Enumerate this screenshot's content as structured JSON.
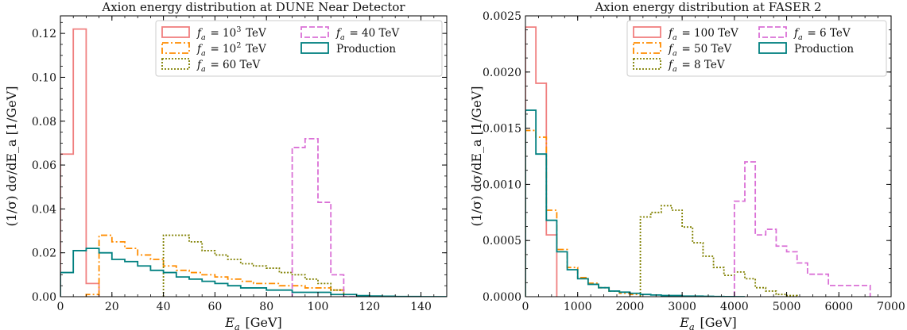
{
  "chart_data": [
    {
      "type": "histogram-step",
      "title": "Axion energy distribution at DUNE Near Detector",
      "xlabel": "E_a [GeV]",
      "ylabel": "(1/σ) dσ/dE_a [1/GeV]",
      "xlim": [
        0,
        150
      ],
      "ylim": [
        0,
        0.128
      ],
      "xticks": [
        0,
        20,
        40,
        60,
        80,
        100,
        120,
        140
      ],
      "xtick_labels": [
        "0",
        "20",
        "40",
        "60",
        "80",
        "100",
        "120",
        "140"
      ],
      "yticks": [
        0,
        0.02,
        0.04,
        0.06,
        0.08,
        0.1,
        0.12
      ],
      "ytick_labels": [
        "0.00",
        "0.02",
        "0.04",
        "0.06",
        "0.08",
        "0.10",
        "0.12"
      ],
      "legend_position": "top-right",
      "legend_columns": 2,
      "series": [
        {
          "name": "f_a = 10^3 TeV",
          "color": "#f08080",
          "dash": "solid",
          "x": [
            0,
            5,
            10,
            15
          ],
          "values": [
            0.065,
            0.122,
            0.006
          ]
        },
        {
          "name": "f_a = 10^2 TeV",
          "color": "#ff8c00",
          "dash": "dashdot",
          "x": [
            10,
            15,
            20,
            25,
            30,
            35,
            40,
            45,
            50,
            55,
            60,
            65,
            70,
            75,
            80,
            85,
            90,
            95,
            100,
            105,
            110
          ],
          "values": [
            0.001,
            0.028,
            0.025,
            0.022,
            0.019,
            0.017,
            0.014,
            0.012,
            0.011,
            0.01,
            0.009,
            0.008,
            0.007,
            0.006,
            0.006,
            0.005,
            0.005,
            0.004,
            0.004,
            0.003
          ]
        },
        {
          "name": "f_a = 60 TeV",
          "color": "#808000",
          "dash": "dotted",
          "x": [
            40,
            45,
            50,
            55,
            60,
            65,
            70,
            75,
            80,
            85,
            90,
            95,
            100,
            105,
            110
          ],
          "values": [
            0.028,
            0.028,
            0.025,
            0.021,
            0.019,
            0.017,
            0.015,
            0.014,
            0.013,
            0.011,
            0.01,
            0.008,
            0.006,
            0.003
          ]
        },
        {
          "name": "f_a = 40 TeV",
          "color": "#da70d6",
          "dash": "dashed",
          "x": [
            90,
            95,
            100,
            105,
            110,
            115
          ],
          "values": [
            0.068,
            0.072,
            0.043,
            0.01,
            0.0
          ]
        },
        {
          "name": "Production",
          "color": "#008080",
          "dash": "solid",
          "x": [
            0,
            5,
            10,
            15,
            20,
            25,
            30,
            35,
            40,
            45,
            50,
            55,
            60,
            65,
            70,
            75,
            80,
            85,
            90,
            95,
            100,
            105,
            110,
            115,
            120,
            125,
            130,
            135,
            140,
            145,
            150
          ],
          "values": [
            0.011,
            0.021,
            0.022,
            0.02,
            0.017,
            0.016,
            0.014,
            0.012,
            0.011,
            0.009,
            0.008,
            0.007,
            0.006,
            0.005,
            0.004,
            0.004,
            0.003,
            0.003,
            0.002,
            0.002,
            0.002,
            0.001,
            0.001,
            0.0005,
            0.0003,
            0.0002,
            0.0001,
            0.0001,
            0.0,
            0.0
          ]
        }
      ]
    },
    {
      "type": "histogram-step",
      "title": "Axion energy distribution at FASER 2",
      "xlabel": "E_a [GeV]",
      "ylabel": "(1/σ) dσ/dE_a [1/GeV]",
      "xlim": [
        0,
        7000
      ],
      "ylim": [
        0,
        0.0025
      ],
      "xticks": [
        0,
        1000,
        2000,
        3000,
        4000,
        5000,
        6000,
        7000
      ],
      "xtick_labels": [
        "0",
        "1000",
        "2000",
        "3000",
        "4000",
        "5000",
        "6000",
        "7000"
      ],
      "yticks": [
        0,
        0.0005,
        0.001,
        0.0015,
        0.002,
        0.0025
      ],
      "ytick_labels": [
        "0.0000",
        "0.0005",
        "0.0010",
        "0.0015",
        "0.0020",
        "0.0025"
      ],
      "legend_position": "top-right",
      "legend_columns": 2,
      "series": [
        {
          "name": "f_a = 100 TeV",
          "color": "#f08080",
          "dash": "solid",
          "x": [
            0,
            200,
            400,
            600
          ],
          "values": [
            0.0024,
            0.0019,
            0.00055
          ]
        },
        {
          "name": "f_a = 50 TeV",
          "color": "#ff8c00",
          "dash": "dashdot",
          "x": [
            0,
            200,
            400,
            600,
            800,
            1000,
            1200,
            1400,
            1600,
            1800,
            2000,
            2200
          ],
          "values": [
            0.00148,
            0.00142,
            0.00077,
            0.00042,
            0.00026,
            0.00017,
            0.00012,
            8e-05,
            5e-05,
            3e-05,
            2e-05
          ]
        },
        {
          "name": "f_a = 8 TeV",
          "color": "#808000",
          "dash": "dotted",
          "x": [
            2200,
            2400,
            2600,
            2800,
            3000,
            3200,
            3400,
            3600,
            3800,
            4000,
            4200,
            4400,
            4600,
            4800,
            5000,
            5200
          ],
          "values": [
            0.00071,
            0.00075,
            0.00081,
            0.00077,
            0.00062,
            0.00048,
            0.00036,
            0.00026,
            0.00019,
            0.00022,
            0.00016,
            8e-05,
            5e-05,
            2e-05,
            1e-05
          ]
        },
        {
          "name": "f_a = 6 TeV",
          "color": "#da70d6",
          "dash": "dashed",
          "x": [
            4000,
            4200,
            4400,
            4600,
            4800,
            5000,
            5200,
            5400,
            5600,
            5800,
            6000,
            6200,
            6400,
            6600
          ],
          "values": [
            0.00085,
            0.0012,
            0.00055,
            0.0006,
            0.00045,
            0.0004,
            0.0003,
            0.0002,
            0.0002,
            0.0001,
            0.0001,
            0.0001,
            0.0001
          ]
        },
        {
          "name": "Production",
          "color": "#008080",
          "dash": "solid",
          "x": [
            0,
            200,
            400,
            600,
            800,
            1000,
            1200,
            1400,
            1600,
            1800,
            2000,
            2200,
            2400,
            2600,
            2800,
            3000,
            3200,
            3400,
            3600,
            3800,
            4000,
            4200
          ],
          "values": [
            0.00166,
            0.00127,
            0.00068,
            0.0004,
            0.00024,
            0.00016,
            0.00011,
            8e-05,
            5e-05,
            4e-05,
            3e-05,
            2e-05,
            1.5e-05,
            1e-05,
            1e-05,
            5e-06,
            5e-06,
            3e-06,
            2e-06,
            1e-06,
            0.0
          ]
        }
      ]
    }
  ]
}
